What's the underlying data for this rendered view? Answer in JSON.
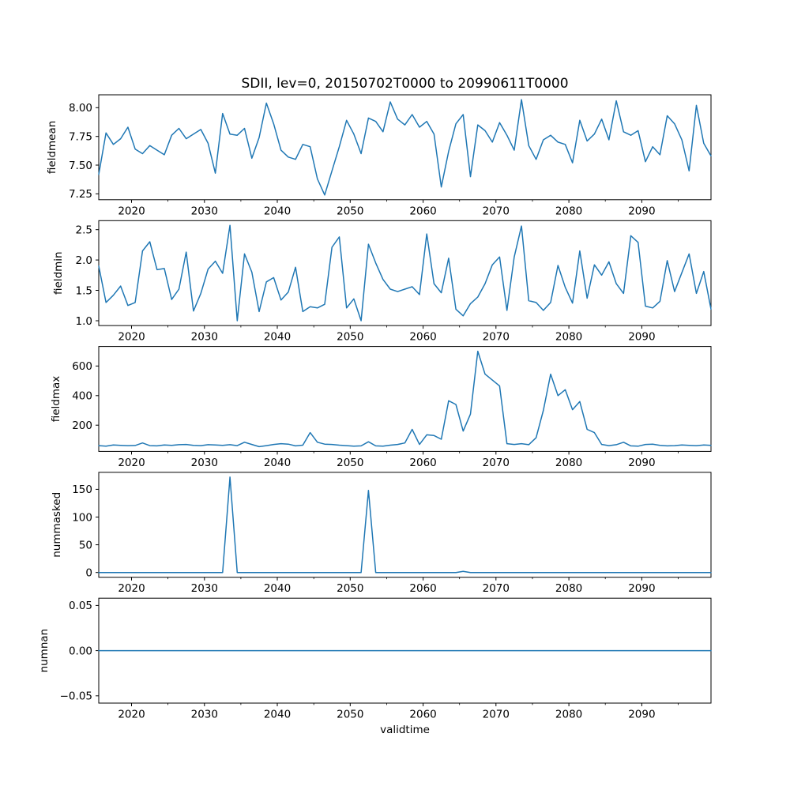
{
  "title": "SDII, lev=0, 20150702T0000 to 20990611T0000",
  "accent_color": "#1f77b4",
  "chart_data": {
    "type": "line",
    "xlabel": "validtime",
    "legend": "none",
    "grid": false,
    "line_color": "#1f77b4",
    "xlim": [
      2015.5,
      2099.5
    ],
    "x_ticks": [
      2020,
      2030,
      2040,
      2050,
      2060,
      2070,
      2080,
      2090
    ],
    "x_minor_ticks": [
      2025,
      2035,
      2045,
      2055,
      2065,
      2075,
      2085,
      2095
    ],
    "x_point_offset": 0.5,
    "x": [
      2015,
      2016,
      2017,
      2018,
      2019,
      2020,
      2021,
      2022,
      2023,
      2024,
      2025,
      2026,
      2027,
      2028,
      2029,
      2030,
      2031,
      2032,
      2033,
      2034,
      2035,
      2036,
      2037,
      2038,
      2039,
      2040,
      2041,
      2042,
      2043,
      2044,
      2045,
      2046,
      2047,
      2048,
      2049,
      2050,
      2051,
      2052,
      2053,
      2054,
      2055,
      2056,
      2057,
      2058,
      2059,
      2060,
      2061,
      2062,
      2063,
      2064,
      2065,
      2066,
      2067,
      2068,
      2069,
      2070,
      2071,
      2072,
      2073,
      2074,
      2075,
      2076,
      2077,
      2078,
      2079,
      2080,
      2081,
      2082,
      2083,
      2084,
      2085,
      2086,
      2087,
      2088,
      2089,
      2090,
      2091,
      2092,
      2093,
      2094,
      2095,
      2096,
      2097,
      2098,
      2099
    ],
    "subplots": [
      {
        "ylabel": "fieldmean",
        "ylim": [
          7.199,
          8.112
        ],
        "yticks": [
          7.25,
          7.5,
          7.75,
          8.0
        ],
        "ytick_labels": [
          "7.25",
          "7.50",
          "7.75",
          "8.00"
        ],
        "values": [
          7.42,
          7.78,
          7.68,
          7.73,
          7.83,
          7.64,
          7.6,
          7.67,
          7.63,
          7.59,
          7.76,
          7.82,
          7.73,
          7.77,
          7.81,
          7.69,
          7.43,
          7.95,
          7.77,
          7.76,
          7.82,
          7.56,
          7.74,
          8.04,
          7.86,
          7.63,
          7.57,
          7.55,
          7.68,
          7.66,
          7.38,
          7.24,
          7.45,
          7.66,
          7.89,
          7.77,
          7.6,
          7.91,
          7.88,
          7.79,
          8.05,
          7.9,
          7.85,
          7.94,
          7.83,
          7.88,
          7.77,
          7.31,
          7.62,
          7.86,
          7.94,
          7.4,
          7.85,
          7.8,
          7.7,
          7.87,
          7.76,
          7.63,
          8.07,
          7.67,
          7.55,
          7.72,
          7.76,
          7.7,
          7.68,
          7.52,
          7.89,
          7.71,
          7.77,
          7.9,
          7.72,
          8.06,
          7.79,
          7.76,
          7.8,
          7.53,
          7.66,
          7.59,
          7.93,
          7.86,
          7.72,
          7.45,
          8.02,
          7.69,
          7.58
        ]
      },
      {
        "ylabel": "fieldmin",
        "ylim": [
          0.92,
          2.648
        ],
        "yticks": [
          1.0,
          1.5,
          2.0,
          2.5
        ],
        "ytick_labels": [
          "1.0",
          "1.5",
          "2.0",
          "2.5"
        ],
        "values": [
          1.9,
          1.3,
          1.42,
          1.57,
          1.25,
          1.3,
          2.15,
          2.3,
          1.84,
          1.86,
          1.35,
          1.52,
          2.13,
          1.16,
          1.45,
          1.85,
          1.98,
          1.78,
          2.57,
          1.0,
          2.1,
          1.8,
          1.15,
          1.64,
          1.71,
          1.34,
          1.47,
          1.88,
          1.15,
          1.23,
          1.21,
          1.27,
          2.21,
          2.38,
          1.21,
          1.36,
          1.0,
          2.26,
          1.95,
          1.68,
          1.52,
          1.48,
          1.52,
          1.56,
          1.43,
          2.43,
          1.61,
          1.46,
          2.03,
          1.19,
          1.08,
          1.28,
          1.39,
          1.61,
          1.92,
          2.05,
          1.17,
          2.05,
          2.56,
          1.33,
          1.3,
          1.17,
          1.3,
          1.91,
          1.55,
          1.29,
          2.15,
          1.37,
          1.92,
          1.75,
          1.97,
          1.61,
          1.45,
          2.4,
          2.29,
          1.24,
          1.21,
          1.32,
          1.99,
          1.48,
          1.79,
          2.1,
          1.45,
          1.81,
          1.19
        ]
      },
      {
        "ylabel": "fieldmax",
        "ylim": [
          22.8,
          732.2
        ],
        "yticks": [
          200,
          400,
          600
        ],
        "ytick_labels": [
          "200",
          "400",
          "600"
        ],
        "values": [
          62,
          58,
          66,
          64,
          62,
          63,
          80,
          62,
          60,
          66,
          64,
          68,
          70,
          64,
          62,
          68,
          66,
          64,
          68,
          62,
          85,
          70,
          55,
          62,
          70,
          75,
          72,
          60,
          65,
          150,
          85,
          72,
          70,
          65,
          62,
          58,
          60,
          88,
          60,
          58,
          65,
          70,
          80,
          172,
          70,
          135,
          130,
          105,
          365,
          340,
          160,
          275,
          700,
          545,
          505,
          465,
          75,
          70,
          75,
          68,
          115,
          300,
          545,
          400,
          440,
          305,
          360,
          172,
          150,
          70,
          62,
          68,
          85,
          60,
          58,
          70,
          72,
          64,
          60,
          62,
          66,
          64,
          62,
          66,
          64
        ]
      },
      {
        "ylabel": "nummasked",
        "ylim": [
          -8.6,
          180.6
        ],
        "yticks": [
          0,
          50,
          100,
          150
        ],
        "ytick_labels": [
          "0",
          "50",
          "100",
          "150"
        ],
        "values": [
          0,
          0,
          0,
          0,
          0,
          0,
          0,
          0,
          0,
          0,
          0,
          0,
          0,
          0,
          0,
          0,
          0,
          0,
          172,
          0,
          0,
          0,
          0,
          0,
          0,
          0,
          0,
          0,
          0,
          0,
          0,
          0,
          0,
          0,
          0,
          0,
          0,
          148,
          0,
          0,
          0,
          0,
          0,
          0,
          0,
          0,
          0,
          0,
          0,
          0,
          2,
          0,
          0,
          0,
          0,
          0,
          0,
          0,
          0,
          0,
          0,
          0,
          0,
          0,
          0,
          0,
          0,
          0,
          0,
          0,
          0,
          0,
          0,
          0,
          0,
          0,
          0,
          0,
          0,
          0,
          0,
          0,
          0,
          0,
          0
        ]
      },
      {
        "ylabel": "numnan",
        "ylim": [
          -0.058,
          0.058
        ],
        "yticks": [
          -0.05,
          0.0,
          0.05
        ],
        "ytick_labels": [
          "−0.05",
          "0.00",
          "0.05"
        ],
        "values": [
          0,
          0,
          0,
          0,
          0,
          0,
          0,
          0,
          0,
          0,
          0,
          0,
          0,
          0,
          0,
          0,
          0,
          0,
          0,
          0,
          0,
          0,
          0,
          0,
          0,
          0,
          0,
          0,
          0,
          0,
          0,
          0,
          0,
          0,
          0,
          0,
          0,
          0,
          0,
          0,
          0,
          0,
          0,
          0,
          0,
          0,
          0,
          0,
          0,
          0,
          0,
          0,
          0,
          0,
          0,
          0,
          0,
          0,
          0,
          0,
          0,
          0,
          0,
          0,
          0,
          0,
          0,
          0,
          0,
          0,
          0,
          0,
          0,
          0,
          0,
          0,
          0,
          0,
          0,
          0,
          0,
          0,
          0,
          0,
          0
        ]
      }
    ]
  }
}
